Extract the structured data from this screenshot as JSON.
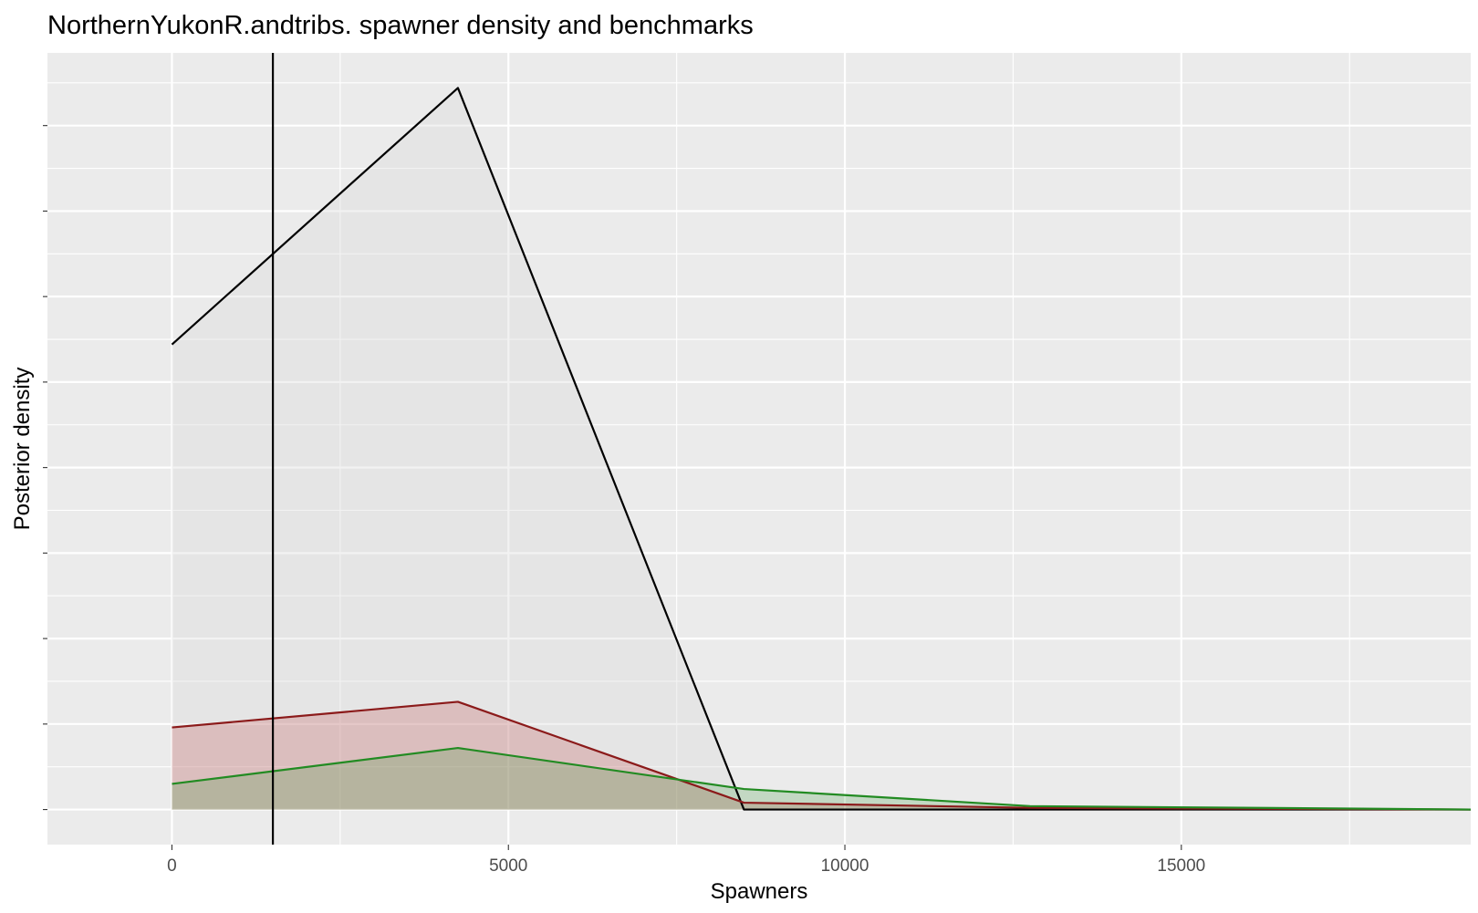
{
  "chart_data": {
    "type": "area",
    "title": "NorthernYukonR.andtribs. spawner density and benchmarks",
    "xlabel": "Spawners",
    "ylabel": "Posterior density",
    "xlim": [
      -1850,
      19300
    ],
    "ylim": [
      -2.05e-06,
      4.425e-05
    ],
    "x_ticks": [
      0,
      5000,
      10000,
      15000
    ],
    "y_ticks_hidden": true,
    "grid": true,
    "legend": "none",
    "series": [
      {
        "color": "#000000",
        "fill": "#d9d9d9",
        "fill_opacity": 0.35,
        "x": [
          0,
          4250,
          8500,
          12750,
          19300
        ],
        "y": [
          2.72e-05,
          4.22e-05,
          0,
          0,
          0
        ]
      },
      {
        "color": "#8b1a1a",
        "fill": "#b22222",
        "fill_opacity": 0.2,
        "x": [
          0,
          4250,
          8500,
          12750,
          19300
        ],
        "y": [
          4.8e-06,
          6.3e-06,
          4e-07,
          1e-07,
          0
        ]
      },
      {
        "color": "#228b22",
        "fill": "#228b22",
        "fill_opacity": 0.2,
        "x": [
          0,
          4250,
          8500,
          12750,
          19300
        ],
        "y": [
          1.5e-06,
          3.6e-06,
          1.2e-06,
          2e-07,
          0
        ]
      }
    ],
    "vlines": [
      {
        "x": 1500,
        "color": "#000000"
      }
    ]
  }
}
